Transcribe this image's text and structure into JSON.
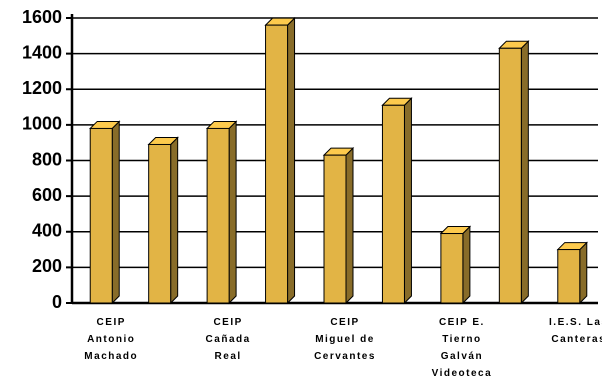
{
  "chart_data": {
    "type": "bar3d",
    "categories": [
      "CEIP\nAntonio\nMachado",
      null,
      "CEIP\nCañada\nReal",
      null,
      "CEIP\nMiguel de\nCervantes",
      null,
      "CEIP E.\nTierno\nGalván\nVideoteca",
      null,
      "I.E.S. Las\nCanteras"
    ],
    "values": [
      980,
      890,
      980,
      1560,
      830,
      1110,
      390,
      1430,
      300
    ],
    "color": "#e2b445",
    "ylim": [
      0,
      1600
    ],
    "yticks": [
      0,
      200,
      400,
      600,
      800,
      1000,
      1200,
      1400,
      1600
    ],
    "grid": true
  }
}
